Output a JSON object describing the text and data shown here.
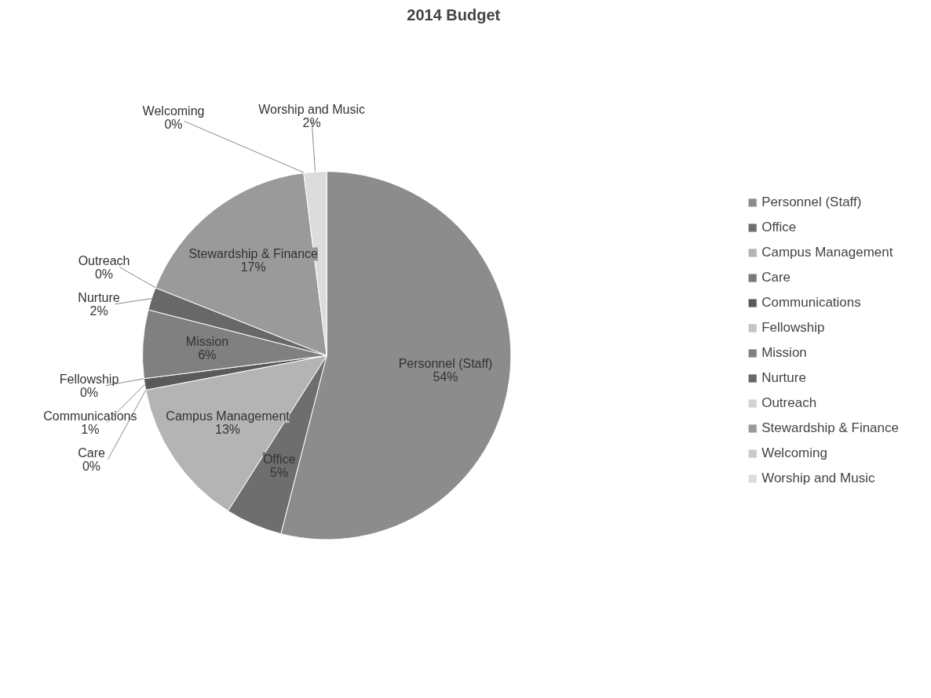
{
  "chart_data": {
    "type": "pie",
    "title": "2014  Budget",
    "categories": [
      "Personnel (Staff)",
      "Office",
      "Campus Management",
      "Care",
      "Communications",
      "Fellowship",
      "Mission",
      "Nurture",
      "Outreach",
      "Stewardship & Finance",
      "Welcoming",
      "Worship and Music"
    ],
    "values": [
      54,
      5,
      13,
      0,
      1,
      0,
      6,
      2,
      0,
      17,
      0,
      2
    ],
    "colors": [
      "#8c8c8c",
      "#6e6e6e",
      "#b4b4b4",
      "#7a7a7a",
      "#5a5a5a",
      "#c4c4c4",
      "#808080",
      "#686868",
      "#d2d2d2",
      "#9a9a9a",
      "#cacaca",
      "#dcdcdc"
    ],
    "value_labels": [
      "54%",
      "5%",
      "13%",
      "0%",
      "1%",
      "0%",
      "6%",
      "2%",
      "0%",
      "17%",
      "0%",
      "2%"
    ],
    "legend": "right"
  }
}
